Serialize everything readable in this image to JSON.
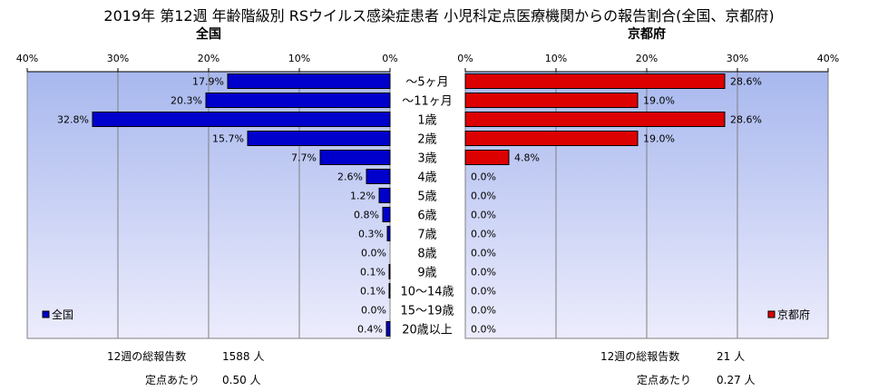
{
  "title": "2019年 第12週 年齢階級別 RSウイルス感染症患者 小児科定点医療機関からの報告割合(全国、京都府)",
  "chart_data": [
    {
      "type": "bar",
      "orientation": "horizontal",
      "direction": "right-to-left",
      "title": "全国",
      "xlim": [
        0,
        40
      ],
      "xticks": [
        "40%",
        "30%",
        "20%",
        "10%",
        "0%"
      ],
      "categories": [
        "～5ヶ月",
        "～11ヶ月",
        "1歳",
        "2歳",
        "3歳",
        "4歳",
        "5歳",
        "6歳",
        "7歳",
        "8歳",
        "9歳",
        "10～14歳",
        "15～19歳",
        "20歳以上"
      ],
      "series": [
        {
          "name": "全国",
          "color": "#0000cc",
          "values": [
            17.9,
            20.3,
            32.8,
            15.7,
            7.7,
            2.6,
            1.2,
            0.8,
            0.3,
            0.0,
            0.1,
            0.1,
            0.0,
            0.4
          ],
          "labels": [
            "17.9%",
            "20.3%",
            "32.8%",
            "15.7%",
            "7.7%",
            "2.6%",
            "1.2%",
            "0.8%",
            "0.3%",
            "0.0%",
            "0.1%",
            "0.1%",
            "0.0%",
            "0.4%"
          ]
        }
      ],
      "legend": "bottom-left",
      "grid": true
    },
    {
      "type": "bar",
      "orientation": "horizontal",
      "direction": "left-to-right",
      "title": "京都府",
      "xlim": [
        0,
        40
      ],
      "xticks": [
        "0%",
        "10%",
        "20%",
        "30%",
        "40%"
      ],
      "categories": [
        "～5ヶ月",
        "～11ヶ月",
        "1歳",
        "2歳",
        "3歳",
        "4歳",
        "5歳",
        "6歳",
        "7歳",
        "8歳",
        "9歳",
        "10～14歳",
        "15～19歳",
        "20歳以上"
      ],
      "series": [
        {
          "name": "京都府",
          "color": "#dd0000",
          "values": [
            28.6,
            19.0,
            28.6,
            19.0,
            4.8,
            0.0,
            0.0,
            0.0,
            0.0,
            0.0,
            0.0,
            0.0,
            0.0,
            0.0
          ],
          "labels": [
            "28.6%",
            "19.0%",
            "28.6%",
            "19.0%",
            "4.8%",
            "0.0%",
            "0.0%",
            "0.0%",
            "0.0%",
            "0.0%",
            "0.0%",
            "0.0%",
            "0.0%",
            "0.0%"
          ]
        }
      ],
      "legend": "bottom-right",
      "grid": true
    }
  ],
  "footer": {
    "national": {
      "total_label": "12週の総報告数",
      "total_value": "1588 人",
      "per_label": "定点あたり",
      "per_value": "0.50 人"
    },
    "kyoto": {
      "total_label": "12週の総報告数",
      "total_value": "21 人",
      "per_label": "定点あたり",
      "per_value": "0.27 人"
    }
  }
}
